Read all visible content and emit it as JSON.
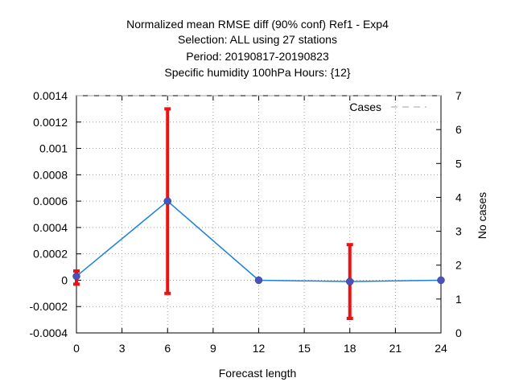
{
  "chart_data": {
    "type": "line",
    "title_lines": [
      "Normalized mean RMSE diff (90% conf) Ref1 - Exp4",
      "Selection: ALL using    27 stations",
      "Period: 20190817-20190823",
      "Specific humidity 100hPa   Hours: {12}"
    ],
    "xlabel": "Forecast length",
    "ylabel": "",
    "y2label": "No cases",
    "xlim": [
      0,
      24
    ],
    "ylim": [
      -0.0004,
      0.0014
    ],
    "y2lim": [
      0,
      7
    ],
    "x_ticks": [
      "0",
      "3",
      "6",
      "9",
      "12",
      "15",
      "18",
      "21",
      "24"
    ],
    "y_ticks": [
      "0.0014",
      "0.0012",
      "0.001",
      "0.0008",
      "0.0006",
      "0.0004",
      "0.0002",
      "0",
      "-0.0002",
      "-0.0004"
    ],
    "y2_ticks": [
      "7",
      "6",
      "5",
      "4",
      "3",
      "2",
      "1",
      "0"
    ],
    "grid": true,
    "legend": {
      "position": "top-right",
      "label": "Cases",
      "color": "#a0a0a0"
    },
    "series": [
      {
        "color": "#1a80e0",
        "marker_color": "#4a52b8",
        "x": [
          0,
          6,
          12,
          18,
          24
        ],
        "y": [
          3e-05,
          0.0006,
          0.0,
          -1e-05,
          0.0
        ],
        "err_low": [
          -3e-05,
          -0.0001,
          0.0,
          -0.00029,
          0.0
        ],
        "err_high": [
          7e-05,
          0.0013,
          0.0,
          0.00027,
          0.0
        ],
        "err_color": "#ee1111"
      }
    ],
    "cases_series": {
      "x": [
        0,
        24
      ],
      "y": [
        7,
        7
      ],
      "color": "#a0a0a0"
    }
  }
}
